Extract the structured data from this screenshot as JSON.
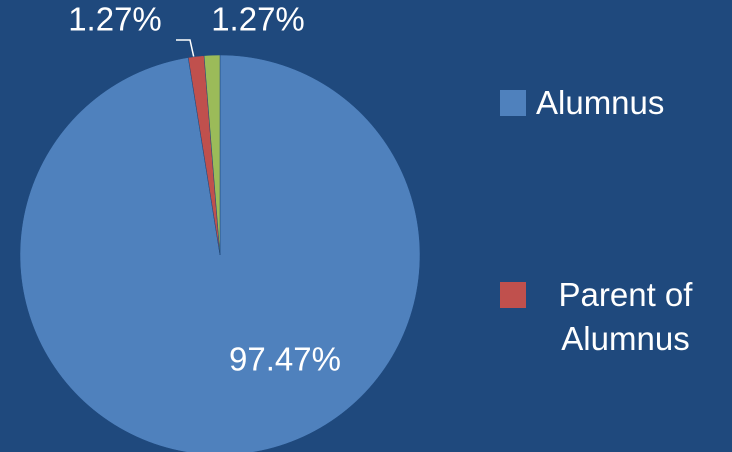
{
  "chart_data": {
    "type": "pie",
    "categories": [
      "Alumnus",
      "Parent of Alumnus",
      null
    ],
    "values": [
      97.47,
      1.27,
      1.27
    ],
    "value_labels": [
      "97.47%",
      "1.27%",
      "1.27%"
    ],
    "colors": [
      "#4f81bd",
      "#c0504d",
      "#9bbb59"
    ],
    "legend": "right"
  }
}
